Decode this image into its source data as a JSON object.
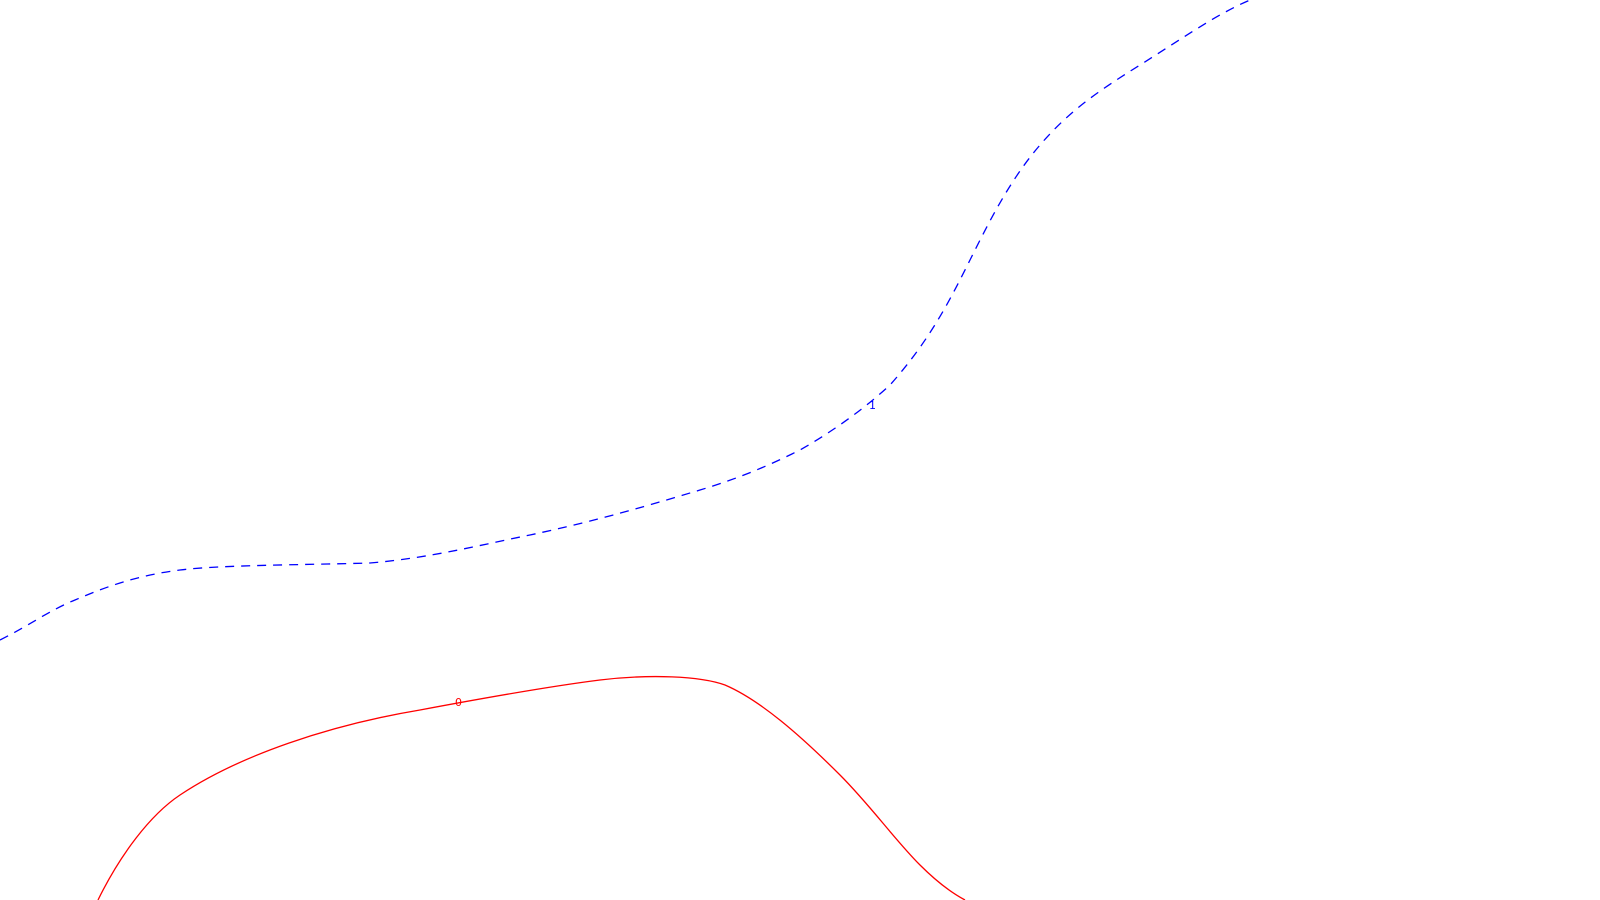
{
  "map": {
    "background_color": "#ffffff",
    "contours": [
      {
        "id": "contour-0",
        "label": "0",
        "color": "#ff0000",
        "line_style": "solid"
      },
      {
        "id": "contour-1",
        "label": "1",
        "color": "#0000ff",
        "line_style": "dashed"
      }
    ]
  }
}
